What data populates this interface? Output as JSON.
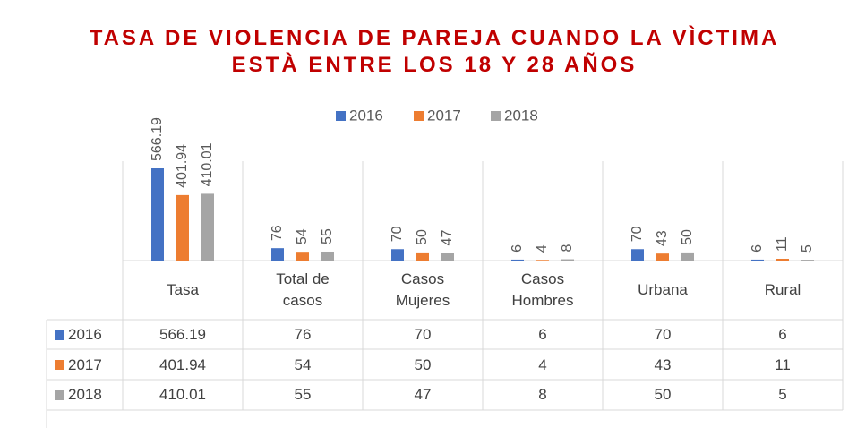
{
  "chart_data": {
    "type": "bar",
    "title": "TASA DE VIOLENCIA DE PAREJA CUANDO LA VÌCTIMA ESTÀ ENTRE LOS 18 Y 28 AÑOS",
    "categories": [
      "Tasa",
      "Total de casos",
      "Casos Mujeres",
      "Casos Hombres",
      "Urbana",
      "Rural"
    ],
    "series": [
      {
        "name": "2016",
        "color": "#4472c4",
        "values": [
          566.19,
          76,
          70,
          6,
          70,
          6
        ]
      },
      {
        "name": "2017",
        "color": "#ed7d31",
        "values": [
          401.94,
          54,
          50,
          4,
          43,
          11
        ]
      },
      {
        "name": "2018",
        "color": "#a5a5a5",
        "values": [
          410.01,
          55,
          47,
          8,
          50,
          5
        ]
      }
    ],
    "legend": "top",
    "data_table": true
  }
}
